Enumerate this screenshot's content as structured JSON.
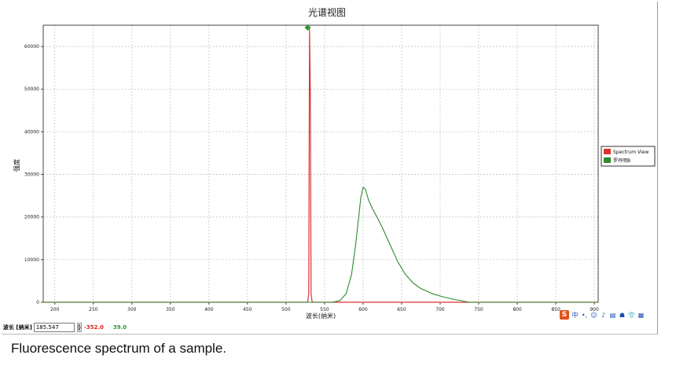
{
  "chart_data": {
    "type": "line",
    "title": "光谱视图",
    "xlabel": "波长(纳米)",
    "ylabel": "强度",
    "xlim": [
      185,
      905
    ],
    "ylim": [
      0,
      65000
    ],
    "xticks": [
      200,
      250,
      300,
      350,
      400,
      450,
      500,
      550,
      600,
      650,
      700,
      750,
      800,
      850,
      900
    ],
    "yticks": [
      0,
      10000,
      20000,
      30000,
      40000,
      50000,
      60000
    ],
    "grid": true,
    "legend_position": "right",
    "series": [
      {
        "name": "Spectrum View",
        "color": "#e03030",
        "points": [
          [
            185,
            0
          ],
          [
            528,
            0
          ],
          [
            529.5,
            2000
          ],
          [
            530.5,
            64000
          ],
          [
            531.5,
            49000
          ],
          [
            532.5,
            2000
          ],
          [
            534,
            0
          ],
          [
            905,
            0
          ]
        ]
      },
      {
        "name": "罗丹明B",
        "color": "#2e8b2e",
        "points": [
          [
            185,
            0
          ],
          [
            560,
            0
          ],
          [
            570,
            400
          ],
          [
            578,
            2000
          ],
          [
            585,
            6500
          ],
          [
            590,
            13000
          ],
          [
            594,
            19500
          ],
          [
            597,
            24500
          ],
          [
            600,
            27000
          ],
          [
            603,
            26500
          ],
          [
            607,
            24000
          ],
          [
            612,
            22000
          ],
          [
            618,
            20000
          ],
          [
            625,
            17500
          ],
          [
            635,
            13500
          ],
          [
            645,
            9500
          ],
          [
            655,
            6500
          ],
          [
            665,
            4500
          ],
          [
            675,
            3200
          ],
          [
            690,
            2000
          ],
          [
            705,
            1200
          ],
          [
            720,
            600
          ],
          [
            738,
            0
          ],
          [
            905,
            0
          ]
        ]
      }
    ]
  },
  "statusbar": {
    "wavelength_label": "波长 [纳米]",
    "wavelength_value": "185.547",
    "readout_red": "-352.0",
    "readout_green": "39.0"
  },
  "ime_toolbar": {
    "logo": "S",
    "items": [
      "中",
      "•,",
      "☺",
      "♪",
      "▤",
      "☗",
      "👕",
      "▦"
    ]
  },
  "caption": "Fluorescence spectrum of a sample."
}
